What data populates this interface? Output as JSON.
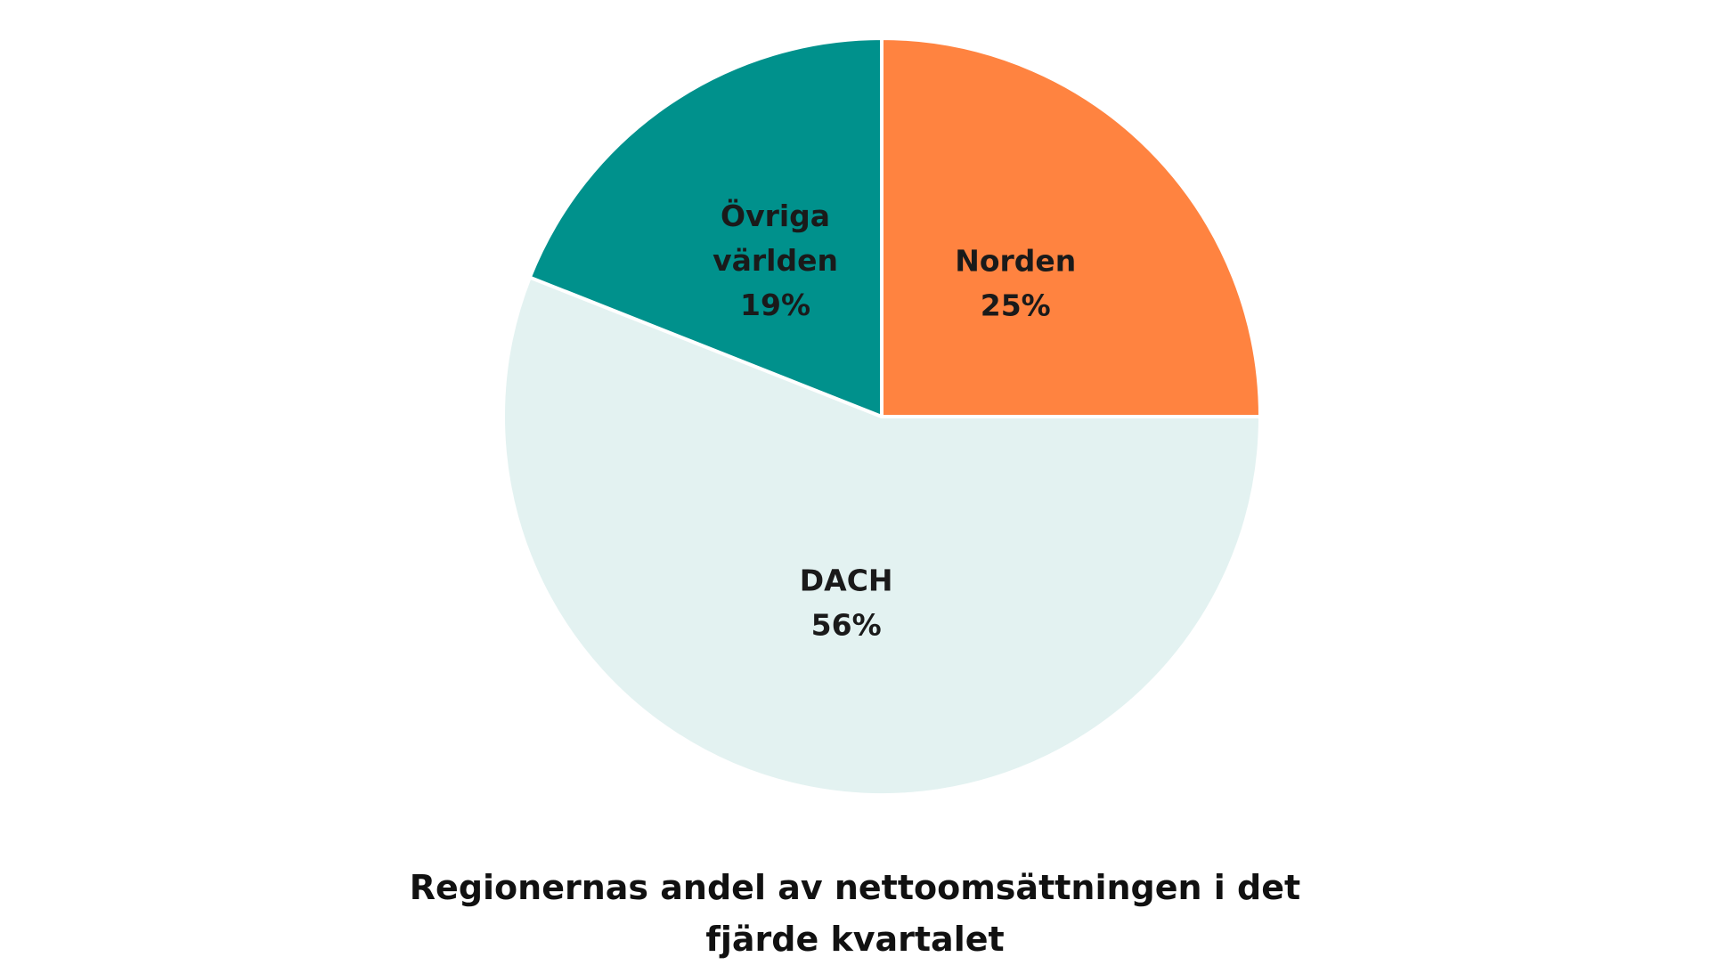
{
  "chart_data": {
    "type": "pie",
    "title_lines": [
      "Regionernas andel av nettoomsättningen i det",
      "fjärde kvartalet"
    ],
    "slices": [
      {
        "name": "Norden",
        "label_lines": [
          "Norden",
          "25%"
        ],
        "value": 25,
        "color": "#FF8340"
      },
      {
        "name": "DACH",
        "label_lines": [
          "DACH",
          "56%"
        ],
        "value": 56,
        "color": "#E3F2F1"
      },
      {
        "name": "Övriga världen",
        "label_lines": [
          "Övriga",
          "världen",
          "19%"
        ],
        "value": 19,
        "color": "#00918C"
      }
    ],
    "start_angle_deg": 0,
    "direction": "clockwise",
    "legend": "none",
    "labels": "inside"
  }
}
